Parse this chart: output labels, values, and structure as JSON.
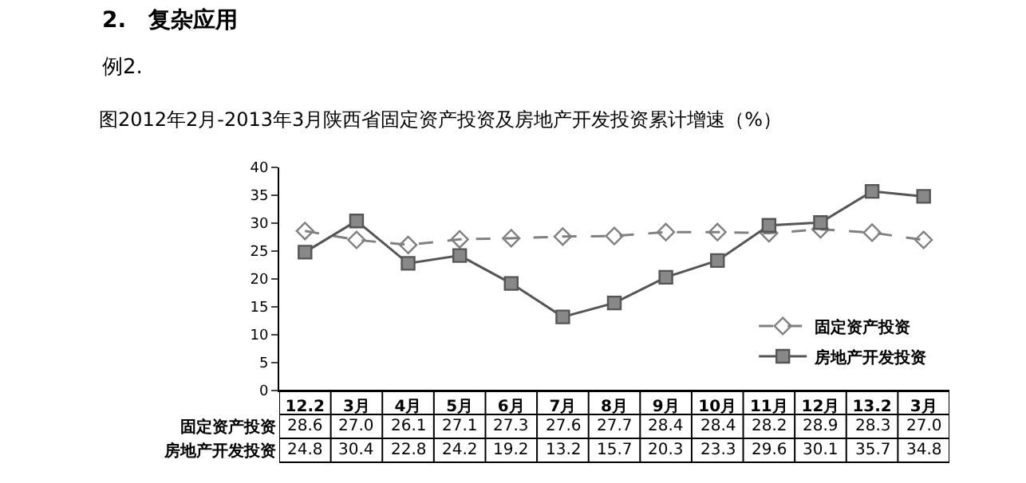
{
  "chart_data": {
    "type": "line",
    "title": "图2012年2月-2013年3月陕西省固定资产投资及房地产开发投资累计增速（%）",
    "annotations": [
      "2.　复杂应用",
      "例2."
    ],
    "categories": [
      "12.2",
      "3月",
      "4月",
      "5月",
      "6月",
      "7月",
      "8月",
      "9月",
      "10月",
      "11月",
      "12月",
      "13.2",
      "3月"
    ],
    "series": [
      {
        "name": "固定资产投资",
        "color": "#808080",
        "marker": "diamond",
        "line_style": "dashed",
        "values": [
          28.6,
          27.0,
          26.1,
          27.1,
          27.3,
          27.6,
          27.7,
          28.4,
          28.4,
          28.2,
          28.9,
          28.3,
          27.0
        ],
        "value_labels": [
          "28.6",
          "27.0",
          "26.1",
          "27.1",
          "27.3",
          "27.6",
          "27.7",
          "28.4",
          "28.4",
          "28.2",
          "28.9",
          "28.3",
          "27.0"
        ]
      },
      {
        "name": "房地产开发投资",
        "color": "#555555",
        "marker": "square",
        "line_style": "solid",
        "values": [
          24.8,
          30.4,
          22.8,
          24.2,
          19.2,
          13.2,
          15.7,
          20.3,
          23.3,
          29.6,
          30.1,
          35.7,
          34.8
        ],
        "value_labels": [
          "24.8",
          "30.4",
          "22.8",
          "24.2",
          "19.2",
          "13.2",
          "15.7",
          "20.3",
          "23.3",
          "29.6",
          "30.1",
          "35.7",
          "34.8"
        ]
      }
    ],
    "ylim": [
      0,
      40
    ],
    "yticks": [
      0,
      5,
      10,
      15,
      20,
      25,
      30,
      35,
      40
    ],
    "grid": false,
    "legend": "bottom right"
  }
}
